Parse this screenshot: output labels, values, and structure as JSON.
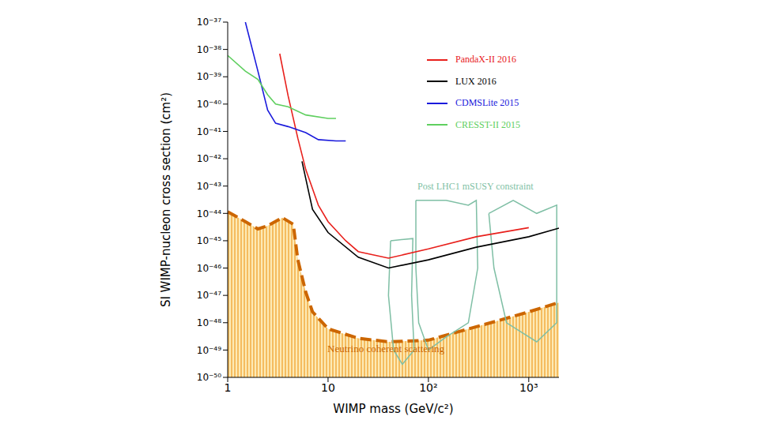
{
  "chart_data": {
    "type": "line",
    "log": true,
    "xlabel": "WIMP mass (GeV/c²)",
    "ylabel": "SI WIMP-nucleon cross section (cm²)",
    "xlim": [
      1,
      2000
    ],
    "ylim": [
      1e-50,
      1e-37
    ],
    "xticks": [
      1,
      10,
      {
        "value": 100,
        "label": "10²"
      },
      {
        "value": 1000,
        "label": "10³"
      }
    ],
    "yticks": [
      {
        "value": 1e-50,
        "label": "10⁻⁵⁰"
      },
      {
        "value": 1e-49,
        "label": "10⁻⁴⁹"
      },
      {
        "value": 1e-48,
        "label": "10⁻⁴⁸"
      },
      {
        "value": 1e-47,
        "label": "10⁻⁴⁷"
      },
      {
        "value": 1e-46,
        "label": "10⁻⁴⁶"
      },
      {
        "value": 1e-45,
        "label": "10⁻⁴⁵"
      },
      {
        "value": 1e-44,
        "label": "10⁻⁴⁴"
      },
      {
        "value": 1e-43,
        "label": "10⁻⁴³"
      },
      {
        "value": 1e-42,
        "label": "10⁻⁴²"
      },
      {
        "value": 1e-41,
        "label": "10⁻⁴¹"
      },
      {
        "value": 1e-40,
        "label": "10⁻⁴⁰"
      },
      {
        "value": 1e-39,
        "label": "10⁻³⁹"
      },
      {
        "value": 1e-38,
        "label": "10⁻³⁸"
      },
      {
        "value": 1e-37,
        "label": "10⁻³⁷"
      }
    ],
    "legend": "top right",
    "series": [
      {
        "name": "PandaX-II 2016",
        "color": "#e8201c",
        "x": [
          3.3,
          4,
          5,
          6,
          8,
          10,
          15,
          20,
          40,
          100,
          300,
          1000
        ],
        "values": [
          7e-39,
          2e-40,
          5.6e-42,
          4e-43,
          2e-44,
          5e-45,
          1e-45,
          4e-46,
          2.3e-46,
          5e-46,
          1.4e-45,
          3e-45
        ]
      },
      {
        "name": "LUX 2016",
        "color": "#000000",
        "x": [
          5.5,
          7,
          10,
          20,
          40,
          100,
          300,
          1000,
          2000
        ],
        "values": [
          8e-43,
          1.4e-44,
          2e-45,
          2.5e-46,
          1e-46,
          2e-46,
          5.8e-46,
          1.4e-45,
          2.9e-45
        ]
      },
      {
        "name": "CDMSLite 2015",
        "color": "#1a1adc",
        "x": [
          1.5,
          2,
          2.5,
          3,
          4,
          6,
          8,
          12,
          15
        ],
        "values": [
          1e-37,
          1.6e-39,
          6e-41,
          2e-41,
          1.5e-41,
          9e-42,
          5e-42,
          4.5e-42,
          4.5e-42
        ]
      },
      {
        "name": "CRESST-II 2015",
        "color": "#5fcf5f",
        "x": [
          1,
          1.5,
          2,
          2.5,
          3,
          4,
          6,
          10,
          12
        ],
        "values": [
          6e-39,
          1.6e-39,
          8e-40,
          2.2e-40,
          1e-40,
          8e-41,
          4e-41,
          3e-41,
          3e-41
        ]
      }
    ],
    "regions": [
      {
        "name": "Neutrino coherent scattering",
        "type": "area",
        "color": "#cc6600",
        "line_style": "dashed",
        "x": [
          1,
          1.5,
          2,
          2.5,
          3.5,
          4.5,
          5,
          6,
          7,
          10,
          20,
          40,
          100,
          200,
          500,
          1000,
          2000
        ],
        "values": [
          1.15e-44,
          5e-45,
          2.7e-45,
          3.5e-45,
          7e-45,
          4e-45,
          2e-46,
          1.3e-47,
          2.5e-48,
          6e-49,
          2.7e-49,
          2e-49,
          2.3e-49,
          4.7e-49,
          1.2e-48,
          2.5e-48,
          5.5e-48
        ]
      },
      {
        "name": "Post LHC1 mSUSY constraint",
        "type": "line",
        "color": "#7fbfa5",
        "line_style": "solid",
        "x": [
          42,
          70,
          68,
          72,
          55,
          45,
          40,
          42,
          42,
          75,
          150,
          250,
          300,
          310,
          250,
          150,
          100,
          80,
          75,
          75,
          75,
          400,
          700,
          1200,
          1900,
          1900,
          1200,
          600,
          450,
          400
        ],
        "values": [
          1e-45,
          1.2e-45,
          1e-47,
          1e-49,
          3e-50,
          1e-49,
          1e-47,
          1e-45,
          null,
          3e-44,
          3e-44,
          2e-44,
          3e-44,
          1e-46,
          1e-48,
          3e-49,
          1e-49,
          1e-48,
          1e-46,
          3e-44,
          null,
          1e-44,
          3e-44,
          1e-44,
          2e-44,
          1e-48,
          2e-49,
          1e-48,
          1e-46,
          1e-44
        ]
      }
    ]
  }
}
